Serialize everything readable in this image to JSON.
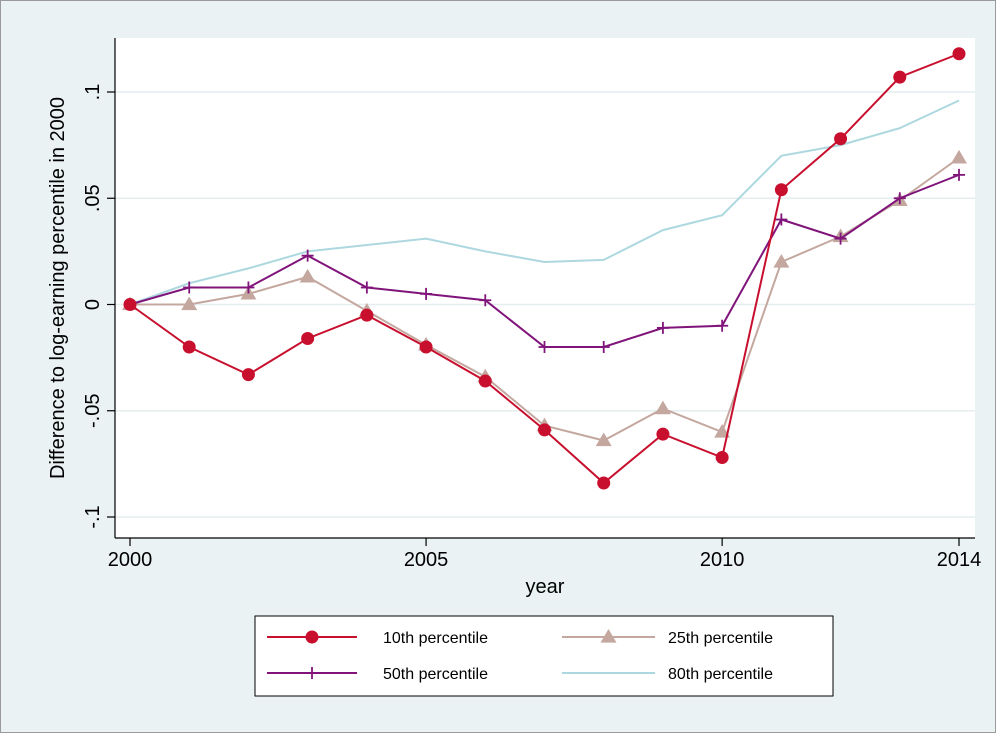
{
  "chart_data": {
    "type": "line",
    "xlabel": "year",
    "ylabel": "Difference to log-earning percentile in 2000",
    "xlim": [
      2000,
      2014
    ],
    "ylim": [
      -0.1,
      0.1
    ],
    "x_ticks": [
      2000,
      2005,
      2010,
      2014
    ],
    "x_tick_labels": [
      "2000",
      "2005",
      "2010",
      "2014"
    ],
    "y_ticks": [
      -0.1,
      -0.05,
      0,
      0.05,
      0.1
    ],
    "y_tick_labels": [
      "-.1",
      "-.05",
      "0",
      ".05",
      ".1"
    ],
    "grid": true,
    "legend_position": "bottom",
    "x": [
      2000,
      2001,
      2002,
      2003,
      2004,
      2005,
      2006,
      2007,
      2008,
      2009,
      2010,
      2011,
      2012,
      2013,
      2014
    ],
    "series": [
      {
        "name": "10th percentile",
        "color": "#c8102e",
        "marker": "circle",
        "values": [
          0.0,
          -0.02,
          -0.033,
          -0.016,
          -0.005,
          -0.02,
          -0.036,
          -0.059,
          -0.084,
          -0.061,
          -0.072,
          0.054,
          0.078,
          0.107,
          0.118
        ]
      },
      {
        "name": "25th percentile",
        "color": "#c4a8a0",
        "marker": "triangle",
        "values": [
          0.0,
          0.0,
          0.005,
          0.013,
          -0.003,
          -0.019,
          -0.034,
          -0.057,
          -0.064,
          -0.049,
          -0.06,
          0.02,
          0.032,
          0.049,
          0.069
        ]
      },
      {
        "name": "50th percentile",
        "color": "#80147a",
        "marker": "plus",
        "values": [
          0.0,
          0.008,
          0.008,
          0.023,
          0.008,
          0.005,
          0.002,
          -0.02,
          -0.02,
          -0.011,
          -0.01,
          0.04,
          0.031,
          0.05,
          0.061
        ]
      },
      {
        "name": "80th percentile",
        "color": "#aed8e0",
        "marker": "none",
        "values": [
          0.0,
          0.01,
          0.017,
          0.025,
          0.028,
          0.031,
          0.025,
          0.02,
          0.021,
          0.035,
          0.042,
          0.07,
          0.075,
          0.083,
          0.096
        ]
      }
    ]
  }
}
